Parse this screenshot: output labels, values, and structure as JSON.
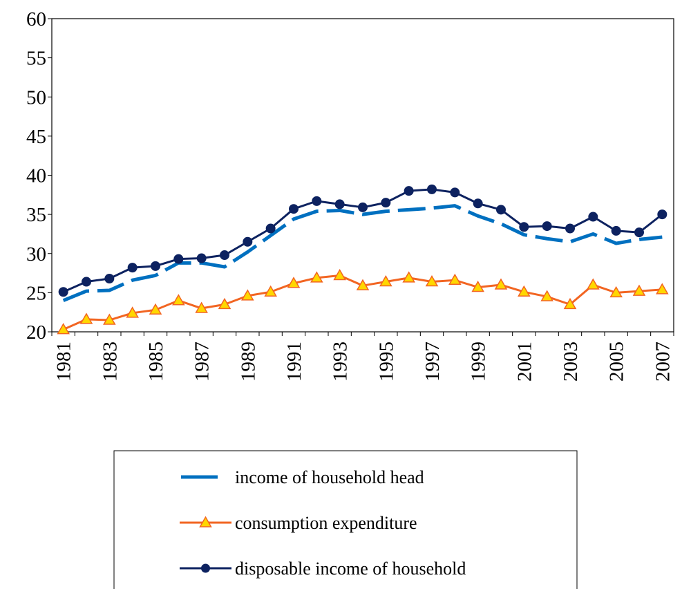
{
  "chart_data": {
    "type": "line",
    "categories": [
      "1981",
      null,
      "1983",
      null,
      "1985",
      null,
      "1987",
      null,
      "1989",
      null,
      "1991",
      null,
      "1993",
      null,
      "1995",
      null,
      "1997",
      null,
      "1999",
      null,
      "2001",
      null,
      "2003",
      null,
      "2005",
      null,
      "2007"
    ],
    "series": [
      {
        "name": "income of household head",
        "color": "#0070c0",
        "style": "dashed",
        "values": [
          24.0,
          25.2,
          25.3,
          26.6,
          27.2,
          28.8,
          28.8,
          28.3,
          30.2,
          32.3,
          34.4,
          35.4,
          35.5,
          35.0,
          35.4,
          35.6,
          35.8,
          36.1,
          34.8,
          33.8,
          32.4,
          31.9,
          31.5,
          32.5,
          31.3,
          31.8,
          32.1
        ]
      },
      {
        "name": "consumption expenditure",
        "color": "#f26522",
        "marker": "triangle",
        "marker_color": "#ffd700",
        "values": [
          20.3,
          21.6,
          21.5,
          22.4,
          22.8,
          24.0,
          23.0,
          23.5,
          24.6,
          25.1,
          26.2,
          26.9,
          27.2,
          25.9,
          26.4,
          26.9,
          26.4,
          26.6,
          25.7,
          26.0,
          25.1,
          24.5,
          23.5,
          26.0,
          25.0,
          25.2,
          25.4
        ]
      },
      {
        "name": "disposable income of household",
        "color": "#0d2260",
        "marker": "circle",
        "values": [
          25.1,
          26.4,
          26.8,
          28.2,
          28.4,
          29.3,
          29.4,
          29.8,
          31.5,
          33.2,
          35.7,
          36.7,
          36.3,
          35.9,
          36.5,
          38.0,
          38.2,
          37.8,
          36.4,
          35.6,
          33.4,
          33.5,
          33.2,
          34.7,
          32.9,
          32.7,
          35.0
        ]
      }
    ],
    "ylim": [
      20,
      60
    ],
    "yticks": [
      20,
      25,
      30,
      35,
      40,
      45,
      50,
      55,
      60
    ],
    "grid": false
  }
}
